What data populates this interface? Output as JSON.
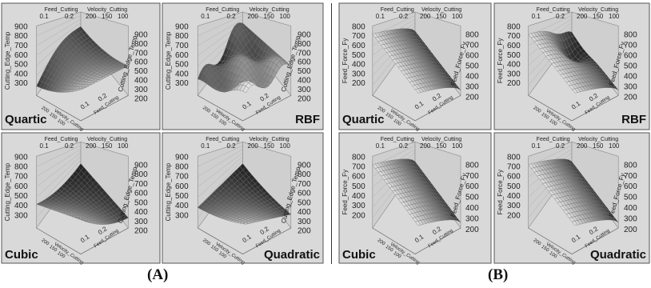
{
  "panels_group_captions": [
    "(A)",
    "(B)"
  ],
  "chart_data": [
    {
      "type": "surface",
      "group": "A",
      "model_label": "Quartic",
      "axis_titles": {
        "top_left": "Feed_Cutting",
        "top_right": "Velocity_Cutting",
        "left_z": "Cutting_Edge_Temp",
        "right_z": "Cutting_Edge_Temp",
        "front_left": "Velocity_Cutting",
        "front_right": "Feed_Cutting"
      },
      "x_ticks": [
        "0.1",
        "0.2"
      ],
      "y_ticks": [
        "200",
        "150",
        "100"
      ],
      "left_z_ticks": [
        "900",
        "800",
        "700",
        "600",
        "500",
        "400",
        "300"
      ],
      "right_z_ticks": [
        "900",
        "800",
        "700",
        "600",
        "500",
        "400",
        "300",
        "200"
      ],
      "front_ticks": [
        "200",
        "150",
        "100",
        "0.1",
        "0.2"
      ],
      "surface_shape": "quartic"
    },
    {
      "type": "surface",
      "group": "A",
      "model_label": "RBF",
      "axis_titles": {
        "top_left": "Feed_Cutting",
        "top_right": "Velocity_Cutting",
        "left_z": "Cutting_Edge_Temp",
        "right_z": "Cutting_Edge_Temp",
        "front_left": "Velocity_Cutting",
        "front_right": "Feed_Cutting"
      },
      "x_ticks": [
        "0.1",
        "0.2"
      ],
      "y_ticks": [
        "200",
        "150",
        "100"
      ],
      "left_z_ticks": [
        "900",
        "800",
        "700",
        "600",
        "500",
        "400",
        "300"
      ],
      "right_z_ticks": [
        "900",
        "800",
        "700",
        "600",
        "500",
        "400",
        "300",
        "200"
      ],
      "front_ticks": [
        "200",
        "150",
        "100",
        "0.1",
        "0.2"
      ],
      "surface_shape": "rbf"
    },
    {
      "type": "surface",
      "group": "A",
      "model_label": "Cubic",
      "axis_titles": {
        "top_left": "Feed_Cutting",
        "top_right": "Velocity_Cutting",
        "left_z": "Cutting_Edge_Temp",
        "right_z": "Cutting_Edge_Temp",
        "front_left": "Velocity_Cutting",
        "front_right": "Feed_Cutting"
      },
      "x_ticks": [
        "0.1",
        "0.2"
      ],
      "y_ticks": [
        "200",
        "150",
        "100"
      ],
      "left_z_ticks": [
        "900",
        "800",
        "700",
        "600",
        "500",
        "400",
        "300"
      ],
      "right_z_ticks": [
        "900",
        "800",
        "700",
        "600",
        "500",
        "400",
        "300",
        "200"
      ],
      "front_ticks": [
        "200",
        "150",
        "100",
        "0.1",
        "0.2"
      ],
      "surface_shape": "cubic"
    },
    {
      "type": "surface",
      "group": "A",
      "model_label": "Quadratic",
      "axis_titles": {
        "top_left": "Feed_Cutting",
        "top_right": "Velocity_Cutting",
        "left_z": "Cutting_Edge_Temp",
        "right_z": "Cutting_Edge_Temp",
        "front_left": "Velocity_Cutting",
        "front_right": "Feed_Cutting"
      },
      "x_ticks": [
        "0.1",
        "0.2"
      ],
      "y_ticks": [
        "200",
        "150",
        "100"
      ],
      "left_z_ticks": [
        "900",
        "800",
        "700",
        "600",
        "500",
        "400",
        "300"
      ],
      "right_z_ticks": [
        "900",
        "800",
        "700",
        "600",
        "500",
        "400",
        "300",
        "200"
      ],
      "front_ticks": [
        "200",
        "150",
        "100",
        "0.1",
        "0.2"
      ],
      "surface_shape": "quadratic"
    },
    {
      "type": "surface",
      "group": "B",
      "model_label": "Quartic",
      "axis_titles": {
        "top_left": "Feed_Cutting",
        "top_right": "Velocity_Cutting",
        "left_z": "Feed_Force_Fy",
        "right_z": "Feed_Force_Fy",
        "front_left": "Velocity_Cutting",
        "front_right": "Feed_Cutting"
      },
      "x_ticks": [
        "0.1",
        "0.2"
      ],
      "y_ticks": [
        "200",
        "150",
        "100"
      ],
      "left_z_ticks": [
        "800",
        "700",
        "600",
        "500",
        "400",
        "300",
        "200"
      ],
      "right_z_ticks": [
        "800",
        "700",
        "600",
        "500",
        "400",
        "300",
        "200"
      ],
      "front_ticks": [
        "200",
        "150",
        "100",
        "0.1",
        "0.2"
      ],
      "surface_shape": "ramp"
    },
    {
      "type": "surface",
      "group": "B",
      "model_label": "RBF",
      "axis_titles": {
        "top_left": "Feed_Cutting",
        "top_right": "Velocity_Cutting",
        "left_z": "Feed_Force_Fy",
        "right_z": "Feed_Force_Fy",
        "front_left": "Velocity_Cutting",
        "front_right": "Feed_Cutting"
      },
      "x_ticks": [
        "0.1",
        "0.2"
      ],
      "y_ticks": [
        "200",
        "150",
        "100"
      ],
      "left_z_ticks": [
        "800",
        "700",
        "600",
        "500",
        "400",
        "300",
        "200"
      ],
      "right_z_ticks": [
        "800",
        "700",
        "600",
        "500",
        "400",
        "300",
        "200"
      ],
      "front_ticks": [
        "200",
        "150",
        "100",
        "0.1",
        "0.2"
      ],
      "surface_shape": "ramp_rbf"
    },
    {
      "type": "surface",
      "group": "B",
      "model_label": "Cubic",
      "axis_titles": {
        "top_left": "Feed_Cutting",
        "top_right": "Velocity_Cutting",
        "left_z": "Feed_Force_Fy",
        "right_z": "Feed_Force_Fy",
        "front_left": "Velocity_Cutting",
        "front_right": "Feed_Cutting"
      },
      "x_ticks": [
        "0.1",
        "0.2"
      ],
      "y_ticks": [
        "200",
        "150",
        "100"
      ],
      "left_z_ticks": [
        "800",
        "700",
        "600",
        "500",
        "400",
        "300",
        "200"
      ],
      "right_z_ticks": [
        "800",
        "700",
        "600",
        "500",
        "400",
        "300",
        "200"
      ],
      "front_ticks": [
        "200",
        "150",
        "100",
        "0.1",
        "0.2"
      ],
      "surface_shape": "ramp"
    },
    {
      "type": "surface",
      "group": "B",
      "model_label": "Quadratic",
      "axis_titles": {
        "top_left": "Feed_Cutting",
        "top_right": "Velocity_Cutting",
        "left_z": "Feed_Force_Fy",
        "right_z": "Feed_Force_Fy",
        "front_left": "Velocity_Cutting",
        "front_right": "Feed_Cutting"
      },
      "x_ticks": [
        "0.1",
        "0.2"
      ],
      "y_ticks": [
        "200",
        "150",
        "100"
      ],
      "left_z_ticks": [
        "800",
        "700",
        "600",
        "500",
        "400",
        "300",
        "200"
      ],
      "right_z_ticks": [
        "800",
        "700",
        "600",
        "500",
        "400",
        "300",
        "200"
      ],
      "front_ticks": [
        "200",
        "150",
        "100",
        "0.1",
        "0.2"
      ],
      "surface_shape": "ramp"
    }
  ]
}
